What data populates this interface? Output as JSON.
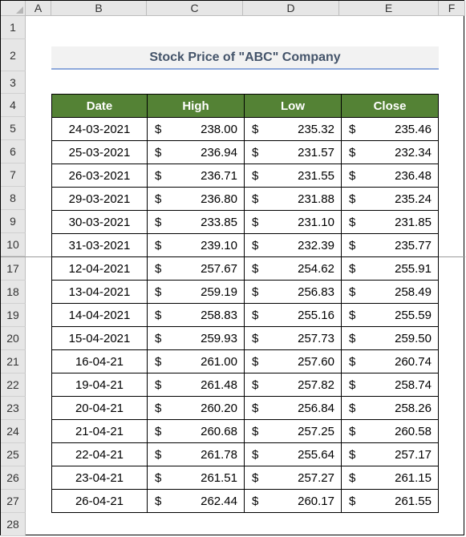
{
  "columns": [
    "A",
    "B",
    "C",
    "D",
    "E",
    "F"
  ],
  "rows": [
    "1",
    "2",
    "3",
    "4",
    "5",
    "6",
    "7",
    "8",
    "9",
    "10",
    "17",
    "18",
    "19",
    "20",
    "21",
    "22",
    "23",
    "24",
    "25",
    "26",
    "27",
    "28"
  ],
  "title": "Stock Price of \"ABC\" Company",
  "headers": {
    "date": "Date",
    "high": "High",
    "low": "Low",
    "close": "Close"
  },
  "currency_symbol": "$",
  "table": [
    {
      "date": "24-03-2021",
      "high": "238.00",
      "low": "235.32",
      "close": "235.46"
    },
    {
      "date": "25-03-2021",
      "high": "236.94",
      "low": "231.57",
      "close": "232.34"
    },
    {
      "date": "26-03-2021",
      "high": "236.71",
      "low": "231.55",
      "close": "236.48"
    },
    {
      "date": "29-03-2021",
      "high": "236.80",
      "low": "231.88",
      "close": "235.24"
    },
    {
      "date": "30-03-2021",
      "high": "233.85",
      "low": "231.10",
      "close": "231.85"
    },
    {
      "date": "31-03-2021",
      "high": "239.10",
      "low": "232.39",
      "close": "235.77"
    },
    {
      "date": "12-04-2021",
      "high": "257.67",
      "low": "254.62",
      "close": "255.91"
    },
    {
      "date": "13-04-2021",
      "high": "259.19",
      "low": "256.83",
      "close": "258.49"
    },
    {
      "date": "14-04-2021",
      "high": "258.83",
      "low": "255.16",
      "close": "255.59"
    },
    {
      "date": "15-04-2021",
      "high": "259.93",
      "low": "257.73",
      "close": "259.50"
    },
    {
      "date": "16-04-21",
      "high": "261.00",
      "low": "257.60",
      "close": "260.74"
    },
    {
      "date": "19-04-21",
      "high": "261.48",
      "low": "257.82",
      "close": "258.74"
    },
    {
      "date": "20-04-21",
      "high": "260.20",
      "low": "256.84",
      "close": "258.26"
    },
    {
      "date": "21-04-21",
      "high": "260.68",
      "low": "257.25",
      "close": "260.58"
    },
    {
      "date": "22-04-21",
      "high": "261.78",
      "low": "255.64",
      "close": "257.17"
    },
    {
      "date": "23-04-21",
      "high": "261.51",
      "low": "257.27",
      "close": "261.15"
    },
    {
      "date": "26-04-21",
      "high": "262.44",
      "low": "260.17",
      "close": "261.55"
    }
  ],
  "colors": {
    "header_bg": "#548235",
    "header_text": "#ffffff",
    "title_text": "#44546a",
    "title_bg": "#f2f2f2",
    "title_underline": "#8ea9db",
    "grid_header_bg": "#e6e6e6"
  }
}
